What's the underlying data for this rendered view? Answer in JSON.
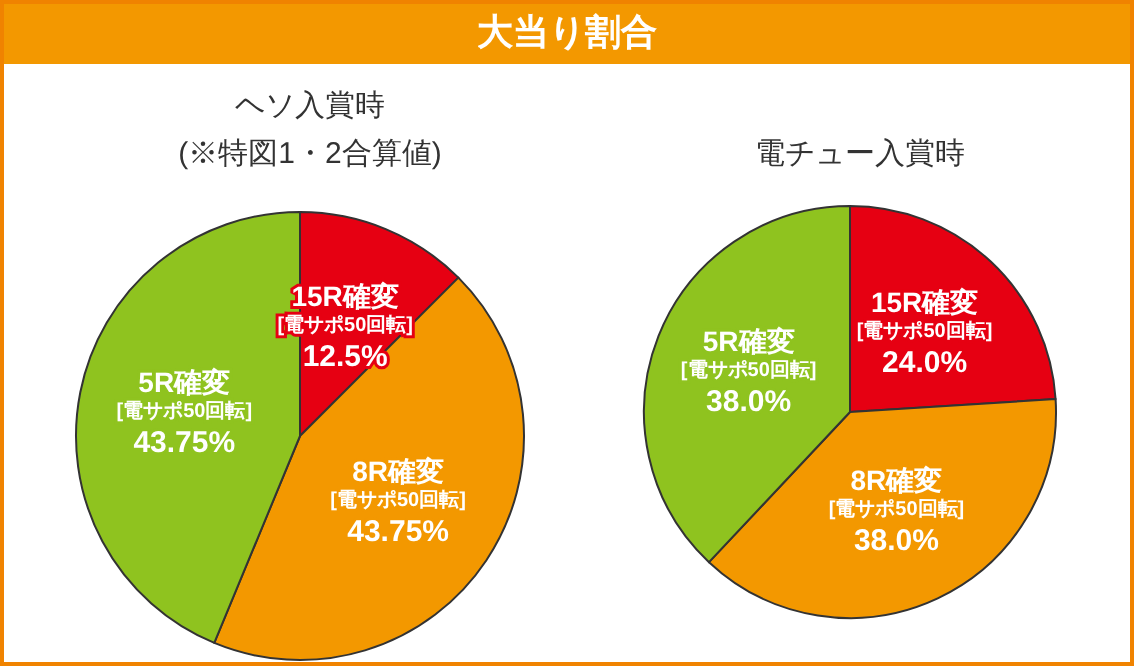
{
  "chart_data": [
    {
      "type": "pie",
      "title": "大当り割合",
      "subtitle": "ヘソ入賞時\n(※特図1・2合算値)",
      "categories": [
        "15R確変\n[電サポ50回転]",
        "8R確変\n[電サポ50回転]",
        "5R確変\n[電サポ50回転]"
      ],
      "values": [
        12.5,
        43.75,
        43.75
      ],
      "value_labels": [
        "12.5%",
        "43.75%",
        "43.75%"
      ],
      "colors": [
        "#e60012",
        "#f39800",
        "#8fc31f"
      ],
      "legend": false
    },
    {
      "type": "pie",
      "title": "電チュー入賞時",
      "categories": [
        "15R確変\n[電サポ50回転]",
        "8R確変\n[電サポ50回転]",
        "5R確変\n[電サポ50回転]"
      ],
      "values": [
        24.0,
        38.0,
        38.0
      ],
      "value_labels": [
        "24.0%",
        "38.0%",
        "38.0%"
      ],
      "colors": [
        "#e60012",
        "#f39800",
        "#8fc31f"
      ],
      "legend": false
    }
  ]
}
